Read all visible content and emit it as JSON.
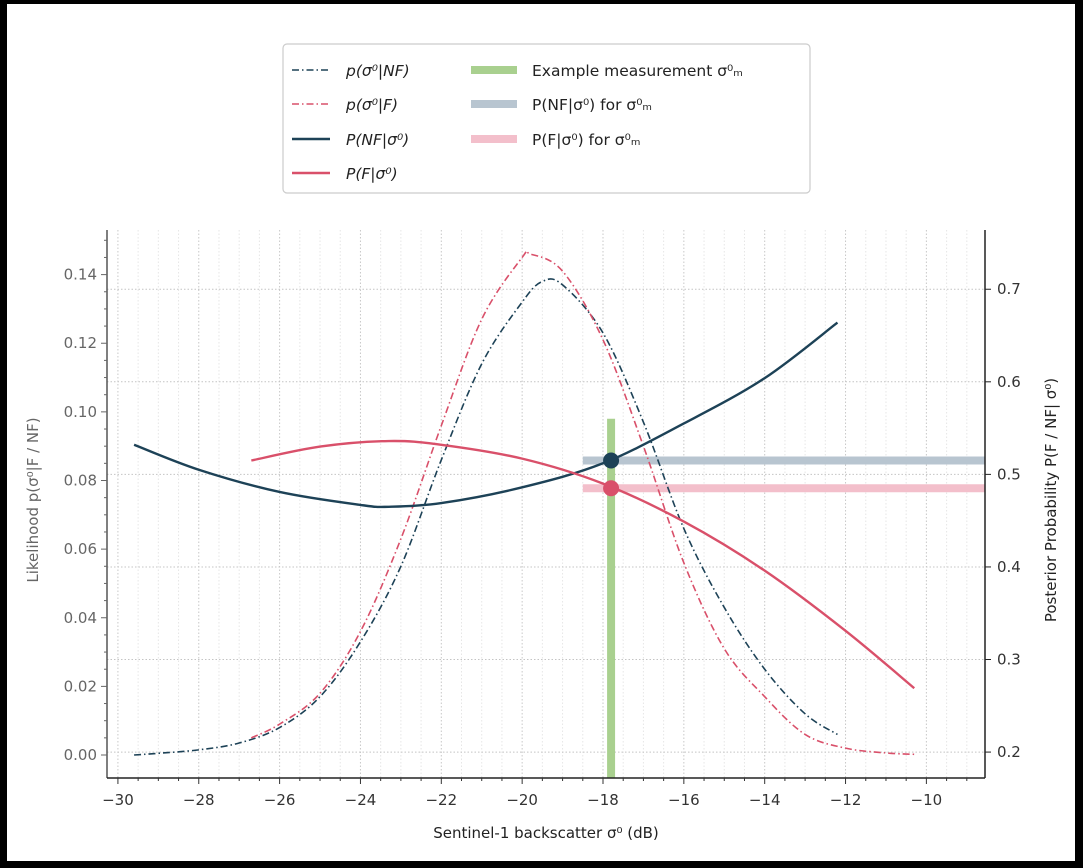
{
  "chart_data": {
    "type": "line",
    "xlabel": "Sentinel-1 backscatter σ⁰ (dB)",
    "ylabel_left": "Likelihood p(σ⁰|F / NF)",
    "ylabel_right": "Posterior Probability P(F / NF| σ⁰)",
    "xlim": [
      -30.27,
      -8.55
    ],
    "ylim_left": [
      -0.0067,
      0.153
    ],
    "ylim_right": [
      0.172,
      0.764
    ],
    "xticks": [
      -30,
      -28,
      -26,
      -24,
      -22,
      -20,
      -18,
      -16,
      -14,
      -12,
      -10
    ],
    "xtick_labels": [
      "−30",
      "−28",
      "−26",
      "−24",
      "−22",
      "−20",
      "−18",
      "−16",
      "−14",
      "−12",
      "−10"
    ],
    "yticks_left": [
      0.0,
      0.02,
      0.04,
      0.06,
      0.08,
      0.1,
      0.12,
      0.14
    ],
    "ytick_labels_left": [
      "0.00",
      "0.02",
      "0.04",
      "0.06",
      "0.08",
      "0.10",
      "0.12",
      "0.14"
    ],
    "yticks_right": [
      0.2,
      0.3,
      0.4,
      0.5,
      0.6,
      0.7
    ],
    "ytick_labels_right": [
      "0.2",
      "0.3",
      "0.4",
      "0.5",
      "0.6",
      "0.7"
    ],
    "grid": true,
    "legend_placement": "top-center-above",
    "colors": {
      "nf": "#1d4257",
      "f": "#d9506a",
      "measurement": "#a9d08f",
      "nf_bar": "#b8c5d0",
      "f_bar": "#f3bfcb"
    },
    "series": [
      {
        "name": "p(σ⁰|NF)",
        "axis": "left",
        "style": "dashdot",
        "color": "#1d4257",
        "x": [
          -29.6,
          -29,
          -28,
          -27,
          -26,
          -25,
          -24,
          -23,
          -22,
          -21,
          -20,
          -19.5,
          -19,
          -18,
          -17,
          -16,
          -15,
          -14,
          -13,
          -12.2
        ],
        "y": [
          0.0,
          0.0005,
          0.0015,
          0.0035,
          0.008,
          0.017,
          0.033,
          0.055,
          0.086,
          0.114,
          0.132,
          0.138,
          0.137,
          0.123,
          0.097,
          0.066,
          0.043,
          0.025,
          0.012,
          0.006
        ]
      },
      {
        "name": "p(σ⁰|F)",
        "axis": "left",
        "style": "dashdot",
        "color": "#d9506a",
        "x": [
          -26.7,
          -26,
          -25,
          -24,
          -23,
          -22,
          -21,
          -20,
          -19.8,
          -19,
          -18,
          -17,
          -16,
          -15,
          -14,
          -13,
          -12,
          -11,
          -10.3
        ],
        "y": [
          0.005,
          0.009,
          0.018,
          0.036,
          0.063,
          0.096,
          0.127,
          0.145,
          0.146,
          0.141,
          0.121,
          0.09,
          0.056,
          0.031,
          0.017,
          0.006,
          0.002,
          0.0006,
          0.0002
        ]
      },
      {
        "name": "P(NF|σ⁰)",
        "axis": "right",
        "style": "solid",
        "color": "#1d4257",
        "x": [
          -29.6,
          -28,
          -26,
          -24,
          -23.3,
          -22,
          -20,
          -18,
          -16,
          -14,
          -12.2
        ],
        "y": [
          0.532,
          0.505,
          0.481,
          0.467,
          0.465,
          0.469,
          0.486,
          0.512,
          0.555,
          0.604,
          0.664
        ]
      },
      {
        "name": "P(F|σ⁰)",
        "axis": "right",
        "style": "solid",
        "color": "#d9506a",
        "x": [
          -26.7,
          -25,
          -23.3,
          -22,
          -20,
          -18,
          -16,
          -14,
          -12,
          -10.3
        ],
        "y": [
          0.515,
          0.53,
          0.536,
          0.532,
          0.517,
          0.49,
          0.449,
          0.396,
          0.331,
          0.269
        ]
      }
    ],
    "measurement": {
      "x": -17.8,
      "top_left_value": 0.098,
      "p_nf": 0.515,
      "p_f": 0.485,
      "bar_start_x": -18.5
    },
    "legend": [
      "p(σ⁰|NF)",
      "p(σ⁰|F)",
      "P(NF|σ⁰)",
      "P(F|σ⁰)",
      "Example measurement σ⁰ₘ",
      "P(NF|σ⁰) for σ⁰ₘ",
      "P(F|σ⁰) for σ⁰ₘ"
    ]
  }
}
